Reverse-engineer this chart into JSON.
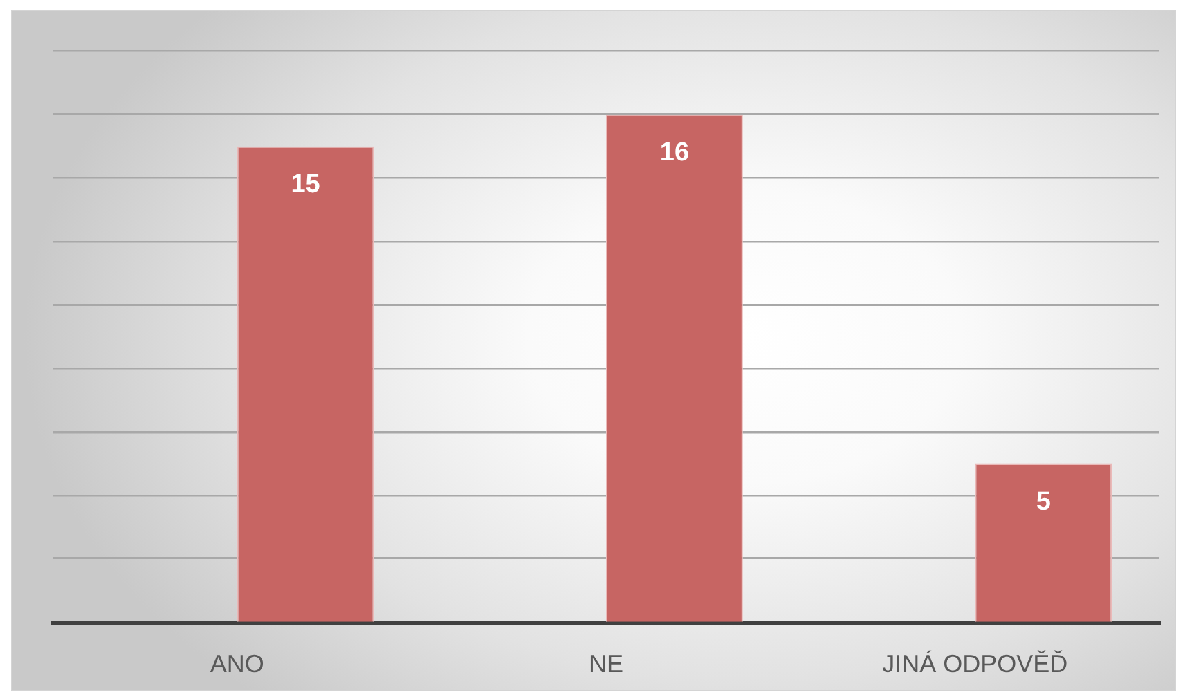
{
  "chart_data": {
    "type": "bar",
    "categories": [
      "ANO",
      "NE",
      "JINÁ ODPOVĚĎ"
    ],
    "values": [
      15,
      16,
      5
    ],
    "color": "#c76563",
    "ylim": [
      0,
      18
    ],
    "yticks": [
      {
        "value": 0,
        "label": null
      },
      {
        "value": 2,
        "label": null
      },
      {
        "value": 4,
        "label": null
      },
      {
        "value": 6,
        "label": null
      },
      {
        "value": 8,
        "label": null
      },
      {
        "value": 10,
        "label": null
      },
      {
        "value": 12,
        "label": null
      },
      {
        "value": 14,
        "label": null
      },
      {
        "value": 16,
        "label": null
      },
      {
        "value": 18,
        "label": null
      }
    ],
    "grid": "y",
    "tick_labels": "x",
    "data_labels": true
  }
}
